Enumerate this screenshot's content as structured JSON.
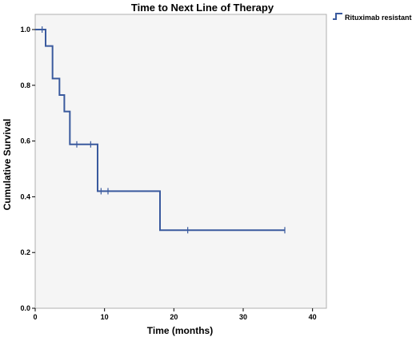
{
  "chart_data": {
    "type": "line",
    "title": "Time to Next Line of Therapy",
    "xlabel": "Time (months)",
    "ylabel": "Cumulative Survival",
    "xlim": [
      0,
      42
    ],
    "ylim": [
      0,
      1.0
    ],
    "x_ticks": [
      "0",
      "10",
      "20",
      "30",
      "40"
    ],
    "y_ticks": [
      "0.0",
      "0.2",
      "0.4",
      "0.6",
      "0.8",
      "1.0"
    ],
    "legend_position": "top-right, outside plot",
    "grid": false,
    "series": [
      {
        "name": "Rituximab resistant",
        "color": "#3a5a9e",
        "steps": [
          {
            "x": 0,
            "y": 1.0
          },
          {
            "x": 1.5,
            "y": 0.941
          },
          {
            "x": 2.5,
            "y": 0.824
          },
          {
            "x": 3.5,
            "y": 0.765
          },
          {
            "x": 4.2,
            "y": 0.706
          },
          {
            "x": 5.0,
            "y": 0.588
          },
          {
            "x": 9.0,
            "y": 0.42
          },
          {
            "x": 18.0,
            "y": 0.28
          }
        ],
        "end_x": 36,
        "censored": [
          {
            "x": 1.0,
            "y": 1.0
          },
          {
            "x": 6.0,
            "y": 0.588
          },
          {
            "x": 8.0,
            "y": 0.588
          },
          {
            "x": 9.5,
            "y": 0.42
          },
          {
            "x": 10.5,
            "y": 0.42
          },
          {
            "x": 22.0,
            "y": 0.28
          },
          {
            "x": 36.0,
            "y": 0.28
          }
        ]
      }
    ]
  }
}
